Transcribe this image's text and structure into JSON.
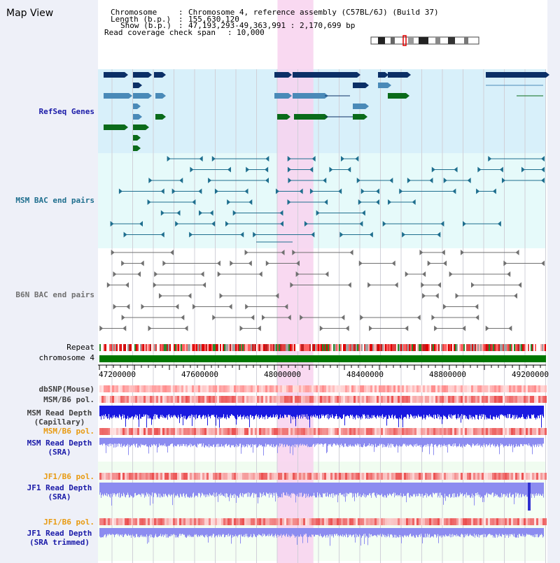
{
  "app": {
    "title": "Map View"
  },
  "info": {
    "chromosome_key": "Chromosome",
    "chromosome_val": "Chromosome 4, reference assembly (C57BL/6J) (Build 37)",
    "length_key": "Length (b.p.)",
    "length_val": "155,630,120",
    "show_key": "Show (b.p.)",
    "show_val": "47,193,293-49,363,991 : 2,170,699 bp",
    "span_key": "Read coverage check span",
    "span_val": "10,000"
  },
  "tracks": {
    "refseq": "RefSeq Genes",
    "msm_bac": "MSM BAC end pairs",
    "b6n_bac": "B6N BAC end pairs",
    "repeat": "Repeat",
    "chromosome": "chromosome 4",
    "dbsnp": "dbSNP(Mouse)",
    "msm_b6_pol_1": "MSM/B6 pol.",
    "msm_cap_1": "MSM Read Depth",
    "msm_cap_2": "(Capillary)",
    "msm_b6_pol_2": "MSM/B6 pol.",
    "msm_sra_1": "MSM Read Depth",
    "msm_sra_2": "(SRA)",
    "jf1_b6_pol_1": "JF1/B6 pol.",
    "jf1_sra_1": "JF1 Read Depth",
    "jf1_sra_2": "(SRA)",
    "jf1_b6_pol_2": "JF1/B6 pol.",
    "jf1_trim_1": "JF1 Read Depth",
    "jf1_trim_2": "(SRA trimmed)"
  },
  "axis": {
    "ticks": [
      "47200000",
      "47600000",
      "48000000",
      "48400000",
      "48800000",
      "49200000"
    ]
  },
  "highlight": {
    "start": 48063000,
    "end": 48237000
  },
  "colors": {
    "gene_dark": "#0b2f66",
    "gene_mid": "#4a8ab8",
    "gene_green": "#0a6b1a",
    "msm_pair": "#1e6e8e",
    "b6n_pair": "#707070",
    "refseq_bg": "#d8f0fa",
    "msm_bg": "#e6fafa",
    "highlight": "#f8d2ee",
    "chromosome_bar": "#007700",
    "depth_capillary": "#1a1ae0",
    "depth_sra": "#8c8cf0",
    "label_blue": "#1a1aa8",
    "label_orange": "#e89a10",
    "label_gray": "#404040"
  }
}
